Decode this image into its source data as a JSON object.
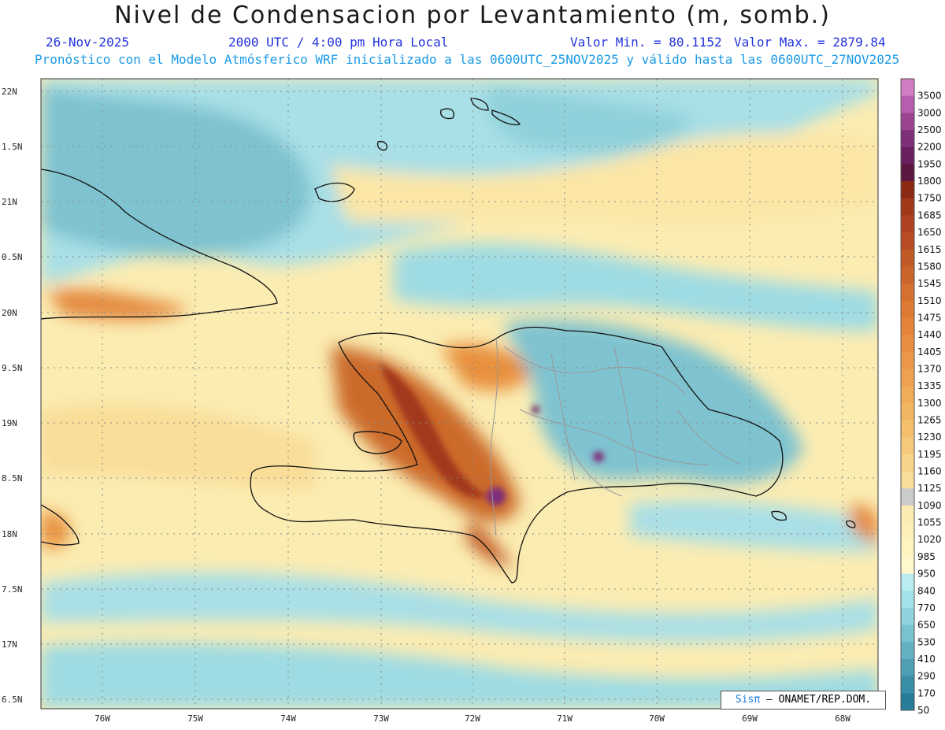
{
  "header": {
    "title": "Nivel de Condensacion por Levantamiento (m, somb.)",
    "date": "26-Nov-2025",
    "time": "2000 UTC / 4:00 pm Hora Local",
    "min_label": "Valor Min. = 80.1152",
    "max_label": "Valor Max. = 2879.84",
    "forecast_line": "Pronóstico con el Modelo Atmósferico WRF inicializado a las 0600UTC_25NOV2025 y válido hasta las  0600UTC_27NOV2025"
  },
  "map": {
    "lon_ticks": [
      "76W",
      "75W",
      "74W",
      "73W",
      "72W",
      "71W",
      "70W",
      "69W",
      "68W"
    ],
    "lat_ticks": [
      "22N",
      "1.5N",
      "21N",
      "0.5N",
      "20N",
      "9.5N",
      "19N",
      "8.5N",
      "18N",
      "7.5N",
      "17N",
      "6.5N"
    ],
    "lon_range": [
      -76.6,
      -67.6
    ],
    "lat_range": [
      16.4,
      22.1
    ]
  },
  "colorbar": {
    "levels": [
      "3500",
      "3000",
      "2500",
      "2200",
      "1950",
      "1800",
      "1750",
      "1685",
      "1650",
      "1615",
      "1580",
      "1545",
      "1510",
      "1475",
      "1440",
      "1405",
      "1370",
      "1335",
      "1300",
      "1265",
      "1230",
      "1195",
      "1160",
      "1125",
      "1090",
      "1055",
      "1020",
      "985",
      "950",
      "840",
      "770",
      "650",
      "530",
      "410",
      "290",
      "170",
      "50"
    ],
    "colors": [
      "#d27cc4",
      "#b75cae",
      "#9c4492",
      "#7f2f7a",
      "#6a2060",
      "#5a1740",
      "#8a2a14",
      "#a2381a",
      "#ae4220",
      "#b84c24",
      "#c25a28",
      "#cc652c",
      "#d67030",
      "#de7a34",
      "#e58438",
      "#e88e40",
      "#eb9848",
      "#ee a250",
      "#f0ac58",
      "#f2b662",
      "#f4c06e",
      "#f6ca7c",
      "#f8d48a",
      "#f9dd98",
      "#faе6a6",
      "#fbecb2",
      "#fcf0ba",
      "#fdf4c2",
      "#fef8cc",
      "#b8ecef",
      "#a3e2e8",
      "#8fd3dc",
      "#79c2cf",
      "#63b1c2",
      "#4e9fb4",
      "#3a8ea6",
      "#287d98"
    ]
  },
  "credit": {
    "sis": "Sisπ",
    "org": "– ONAMET/REP.DOM."
  }
}
